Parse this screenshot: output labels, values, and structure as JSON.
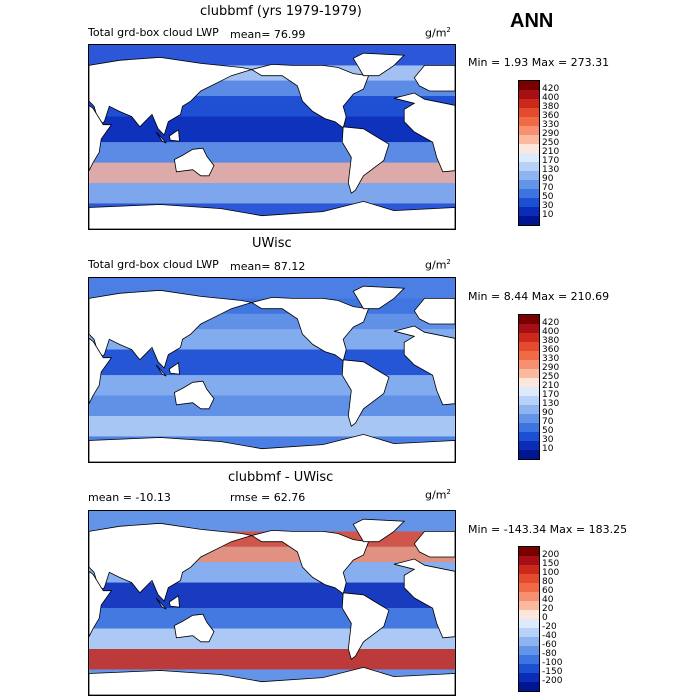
{
  "season": "ANN",
  "panels": [
    {
      "title": "clubbmf (yrs 1979-1979)",
      "left_label": "Total grd-box cloud LWP",
      "stat_label": "mean=  76.99",
      "units": "g/m",
      "units_sup": "2",
      "minmax": "Min =    1.93 Max = 273.31",
      "colorbar": {
        "labels": [
          "420",
          "400",
          "380",
          "360",
          "330",
          "290",
          "250",
          "210",
          "170",
          "130",
          "90",
          "70",
          "50",
          "30",
          "10"
        ],
        "colors": [
          "#7a0000",
          "#a50f15",
          "#cb2a1a",
          "#e34a2e",
          "#f06a45",
          "#f79070",
          "#fbb9a0",
          "#fde7dc",
          "#ddeafb",
          "#b8d2f7",
          "#8db4f0",
          "#6494e8",
          "#3e74e0",
          "#1d4fd2",
          "#0a2cb8",
          "#001690"
        ]
      }
    },
    {
      "title": "UWisc",
      "left_label": "Total grd-box cloud LWP",
      "stat_label": "mean=  87.12",
      "units": "g/m",
      "units_sup": "2",
      "minmax": "Min =    8.44 Max = 210.69",
      "colorbar": {
        "labels": [
          "420",
          "400",
          "380",
          "360",
          "330",
          "290",
          "250",
          "210",
          "170",
          "130",
          "90",
          "70",
          "50",
          "30",
          "10"
        ],
        "colors": [
          "#7a0000",
          "#a50f15",
          "#cb2a1a",
          "#e34a2e",
          "#f06a45",
          "#f79070",
          "#fbb9a0",
          "#fde7dc",
          "#ddeafb",
          "#b8d2f7",
          "#8db4f0",
          "#6494e8",
          "#3e74e0",
          "#1d4fd2",
          "#0a2cb8",
          "#001690"
        ]
      }
    },
    {
      "title": "clubbmf - UWisc",
      "left_label": "mean = -10.13",
      "stat_label": "rmse =  62.76",
      "units": "g/m",
      "units_sup": "2",
      "minmax": "Min = -143.34 Max = 183.25",
      "colorbar": {
        "labels": [
          "200",
          "150",
          "100",
          "80",
          "60",
          "40",
          "20",
          "0",
          "-20",
          "-40",
          "-60",
          "-80",
          "-100",
          "-150",
          "-200"
        ],
        "colors": [
          "#7a0000",
          "#a50f15",
          "#cb2a1a",
          "#e34a2e",
          "#f06a45",
          "#f79070",
          "#fbb9a0",
          "#fde7dc",
          "#ddeafb",
          "#b8d2f7",
          "#8db4f0",
          "#6494e8",
          "#3e74e0",
          "#1d4fd2",
          "#0a2cb8",
          "#001690"
        ]
      }
    }
  ],
  "map_fields": {
    "p1_ocean": "#2b57d8",
    "p1_bands": [
      "#b8d2f7",
      "#6494e8",
      "#1d4fd2",
      "#0a2cb8",
      "#6494e8",
      "#fbb9a0",
      "#8db4f0"
    ],
    "p2_ocean": "#4c7fe3",
    "p2_bands": [
      "#3e74e0",
      "#6494e8",
      "#8db4f0",
      "#1d4fd2",
      "#8db4f0",
      "#6494e8",
      "#b8d2f7"
    ],
    "p3_ocean": "#6494e8",
    "p3_bands": [
      "#e34a2e",
      "#f79070",
      "#8db4f0",
      "#0a2cb8",
      "#3e74e0",
      "#b8d2f7",
      "#cb2a1a"
    ]
  }
}
